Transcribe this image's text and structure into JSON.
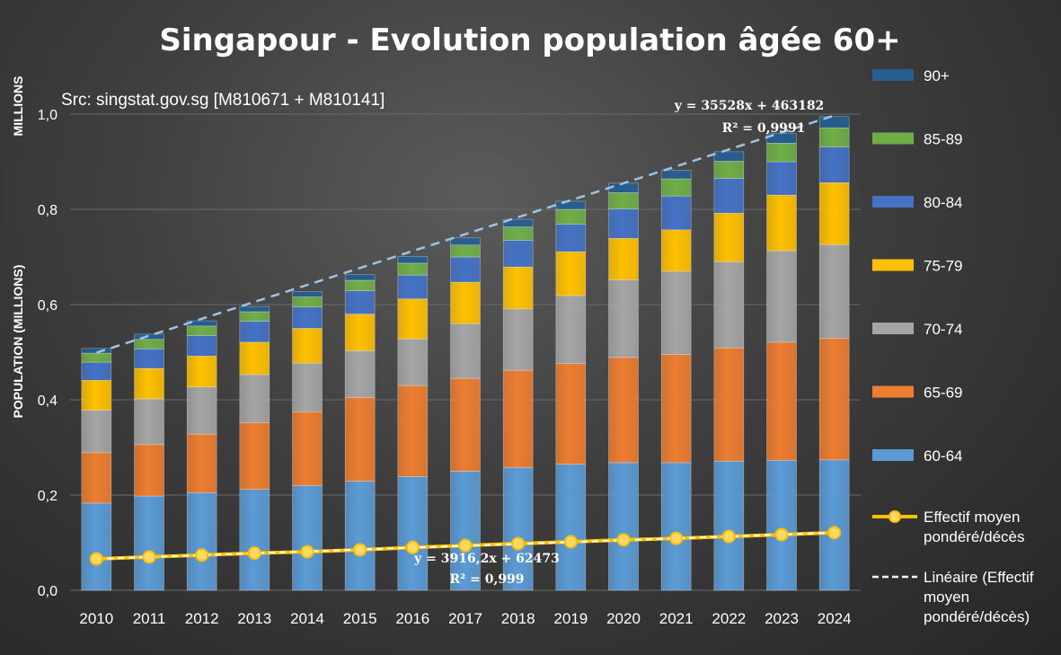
{
  "chart_data": {
    "type": "bar",
    "stacked": true,
    "title": "Singapour - Evolution population âgée 60+",
    "source_note": "Src: singstat.gov.sg [M810671 + M810141]",
    "ylabel": "POPULATION (MILLIONS)",
    "ylabel_secondary": "MILLIONS",
    "ylim": [
      0,
      1.0
    ],
    "y_ticks": [
      "0,0",
      "0,2",
      "0,4",
      "0,6",
      "0,8",
      "1,0"
    ],
    "grid": true,
    "legend_position": "right",
    "categories": [
      "2010",
      "2011",
      "2012",
      "2013",
      "2014",
      "2015",
      "2016",
      "2017",
      "2018",
      "2019",
      "2020",
      "2021",
      "2022",
      "2023",
      "2024"
    ],
    "series": [
      {
        "name": "60-64",
        "color": "#5b9bd5",
        "values": [
          0.183,
          0.198,
          0.205,
          0.212,
          0.22,
          0.229,
          0.239,
          0.25,
          0.258,
          0.265,
          0.268,
          0.268,
          0.271,
          0.273,
          0.274
        ]
      },
      {
        "name": "65-69",
        "color": "#ed7d31",
        "values": [
          0.106,
          0.108,
          0.123,
          0.14,
          0.155,
          0.176,
          0.191,
          0.195,
          0.204,
          0.211,
          0.221,
          0.227,
          0.238,
          0.248,
          0.255
        ]
      },
      {
        "name": "70-74",
        "color": "#a5a5a5",
        "values": [
          0.089,
          0.096,
          0.099,
          0.101,
          0.102,
          0.098,
          0.098,
          0.115,
          0.129,
          0.143,
          0.163,
          0.175,
          0.181,
          0.192,
          0.197
        ]
      },
      {
        "name": "75-79",
        "color": "#ffc000",
        "values": [
          0.063,
          0.064,
          0.065,
          0.068,
          0.073,
          0.077,
          0.084,
          0.087,
          0.088,
          0.092,
          0.087,
          0.087,
          0.102,
          0.117,
          0.13
        ]
      },
      {
        "name": "80-84",
        "color": "#4472c4",
        "values": [
          0.038,
          0.041,
          0.043,
          0.044,
          0.045,
          0.049,
          0.05,
          0.053,
          0.056,
          0.058,
          0.062,
          0.071,
          0.073,
          0.07,
          0.075
        ]
      },
      {
        "name": "85-89",
        "color": "#70ad47",
        "values": [
          0.019,
          0.02,
          0.02,
          0.02,
          0.021,
          0.022,
          0.025,
          0.025,
          0.028,
          0.031,
          0.034,
          0.036,
          0.036,
          0.039,
          0.04
        ]
      },
      {
        "name": "90+",
        "color": "#255e91",
        "values": [
          0.01,
          0.011,
          0.011,
          0.011,
          0.011,
          0.012,
          0.014,
          0.015,
          0.016,
          0.017,
          0.02,
          0.018,
          0.02,
          0.021,
          0.024
        ]
      }
    ],
    "line_series": {
      "name": "Effectif moyen pondéré/décès",
      "color": "#ffc000",
      "marker_color": "#ffd966",
      "values": [
        0.066,
        0.07,
        0.074,
        0.078,
        0.081,
        0.085,
        0.09,
        0.094,
        0.098,
        0.102,
        0.106,
        0.109,
        0.113,
        0.117,
        0.121
      ]
    },
    "trendline_total": {
      "equation": "y = 35528x + 463182",
      "r2": "R² = 0,9991",
      "color": "#9dc3e6",
      "start": 0.499,
      "end": 0.997
    },
    "trendline_line": {
      "name": "Linéaire (Effectif moyen pondéré/décès)",
      "equation": "y = 3916,2x + 62473",
      "r2": "R² = 0,999",
      "color": "#ffffff",
      "start": 0.066,
      "end": 0.121
    }
  }
}
